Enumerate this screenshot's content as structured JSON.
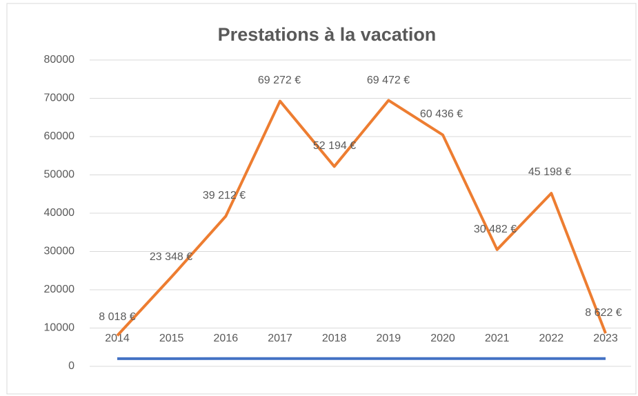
{
  "chart_data": {
    "type": "line",
    "title": "Prestations à la vacation",
    "categories": [
      "2014",
      "2015",
      "2016",
      "2017",
      "2018",
      "2019",
      "2020",
      "2021",
      "2022",
      "2023"
    ],
    "series": [
      {
        "color": "#ed7d31",
        "values": [
          8018,
          23348,
          39212,
          69272,
          52194,
          69472,
          60436,
          30482,
          45198,
          8622
        ],
        "value_labels": [
          "8 018 €",
          "23 348 €",
          "39 212 €",
          "69 272 €",
          "52 194 €",
          "69 472 €",
          "60 436 €",
          "30 482 €",
          "45 198 €",
          "8 622 €"
        ]
      },
      {
        "color": "#4472c4",
        "values": [
          2014,
          2015,
          2016,
          2017,
          2018,
          2019,
          2020,
          2021,
          2022,
          2023
        ]
      }
    ],
    "ylim": [
      0,
      80000
    ],
    "yticks": [
      0,
      10000,
      20000,
      30000,
      40000,
      50000,
      60000,
      70000,
      80000
    ],
    "grid": true
  }
}
